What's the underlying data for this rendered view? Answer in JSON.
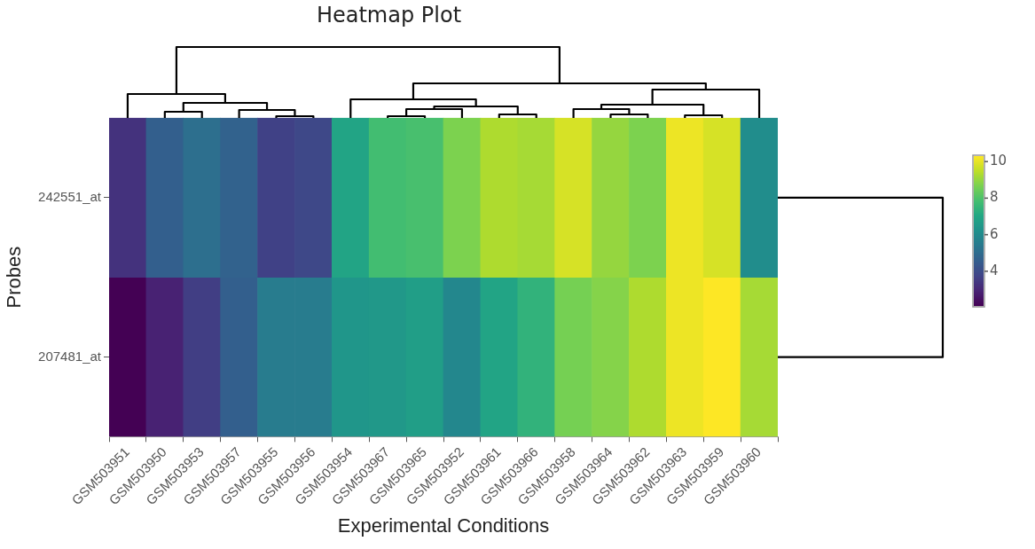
{
  "chart_data": {
    "type": "heatmap",
    "title": "Heatmap Plot",
    "xlabel": "Experimental Conditions",
    "ylabel": "Probes",
    "categories": [
      "GSM503951",
      "GSM503950",
      "GSM503953",
      "GSM503957",
      "GSM503955",
      "GSM503956",
      "GSM503954",
      "GSM503967",
      "GSM503965",
      "GSM503952",
      "GSM503961",
      "GSM503966",
      "GSM503958",
      "GSM503964",
      "GSM503962",
      "GSM503963",
      "GSM503959",
      "GSM503960"
    ],
    "y_categories": [
      "242551_at",
      "207481_at"
    ],
    "cells": [
      [
        3.3,
        4.6,
        5.1,
        4.7,
        3.7,
        3.9,
        6.9,
        7.8,
        7.9,
        8.7,
        9.3,
        9.2,
        9.8,
        9.0,
        8.7,
        10.1,
        9.8,
        6.1
      ],
      [
        2.1,
        2.9,
        3.6,
        4.6,
        5.5,
        5.5,
        6.4,
        6.5,
        6.7,
        5.9,
        6.9,
        7.4,
        8.6,
        8.8,
        9.3,
        10.1,
        10.3,
        9.2
      ]
    ],
    "clim": [
      2.1,
      10.3
    ],
    "cticks": [
      4,
      6,
      8,
      10
    ]
  }
}
